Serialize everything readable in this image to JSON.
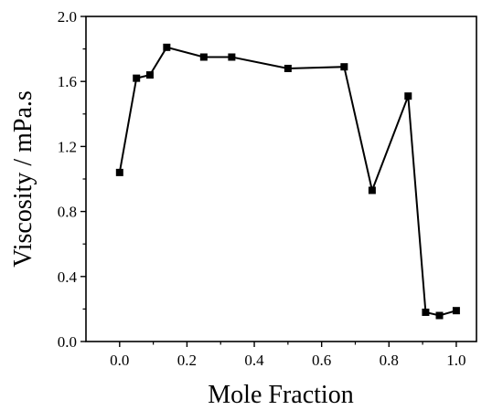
{
  "chart_data": {
    "type": "line",
    "xlabel": "Mole Fraction",
    "ylabel": "Viscosity / mPa.s",
    "xlim": [
      -0.1,
      1.06
    ],
    "ylim": [
      0.0,
      2.0
    ],
    "xticks": [
      0.0,
      0.2,
      0.4,
      0.6,
      0.8,
      1.0
    ],
    "xtick_labels": [
      "0.0",
      "0.2",
      "0.4",
      "0.6",
      "0.8",
      "1.0"
    ],
    "yticks": [
      0.0,
      0.4,
      0.8,
      1.2,
      1.6,
      2.0
    ],
    "ytick_labels": [
      "0.0",
      "0.4",
      "0.8",
      "1.2",
      "1.6",
      "2.0"
    ],
    "grid": false,
    "marker": "square",
    "color": "#000000",
    "series": [
      {
        "x": [
          0.0,
          0.05,
          0.09,
          0.14,
          0.25,
          0.333,
          0.5,
          0.667,
          0.75,
          0.857,
          0.909,
          0.95,
          1.0
        ],
        "y": [
          1.04,
          1.62,
          1.64,
          1.81,
          1.75,
          1.75,
          1.68,
          1.69,
          0.93,
          1.51,
          0.18,
          0.16,
          0.19
        ]
      }
    ]
  }
}
